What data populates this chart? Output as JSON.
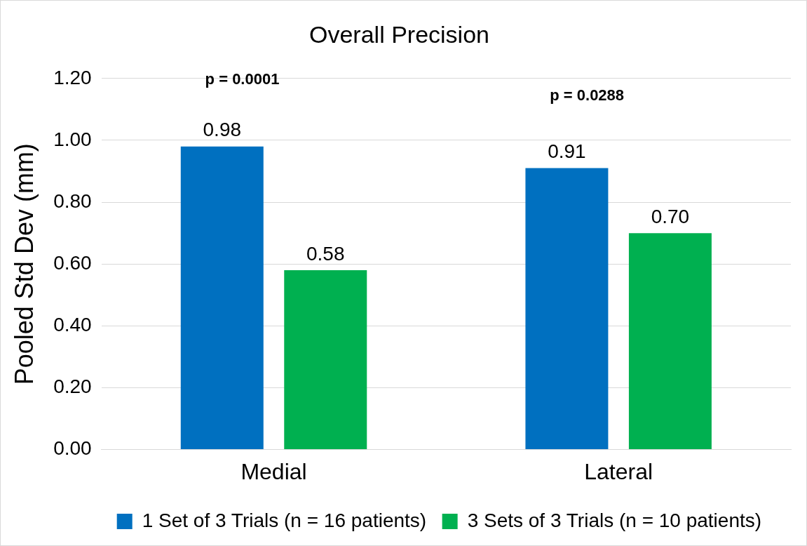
{
  "chart_data": {
    "type": "bar",
    "title": "Overall Precision",
    "ylabel": "Pooled Std Dev (mm)",
    "categories": [
      "Medial",
      "Lateral"
    ],
    "series": [
      {
        "name": "1 Set of 3 Trials (n = 16 patients)",
        "color": "#0070c0",
        "values": [
          0.98,
          0.91
        ],
        "value_labels": [
          "0.98",
          "0.91"
        ]
      },
      {
        "name": "3 Sets of 3 Trials (n = 10 patients)",
        "color": "#00b050",
        "values": [
          0.58,
          0.7
        ],
        "value_labels": [
          "0.58",
          "0.70"
        ]
      }
    ],
    "ylim": [
      0,
      1.2
    ],
    "yticks": [
      {
        "value": 0,
        "label": "0.00"
      },
      {
        "value": 0.2,
        "label": "0.20"
      },
      {
        "value": 0.4,
        "label": "0.40"
      },
      {
        "value": 0.6,
        "label": "0.60"
      },
      {
        "value": 0.8,
        "label": "0.80"
      },
      {
        "value": 1,
        "label": "1.00"
      },
      {
        "value": 1.2,
        "label": "1.20"
      }
    ],
    "grid": "y",
    "legend": "bottom",
    "annotations": [
      "p = 0.0001",
      "p = 0.0288"
    ]
  }
}
